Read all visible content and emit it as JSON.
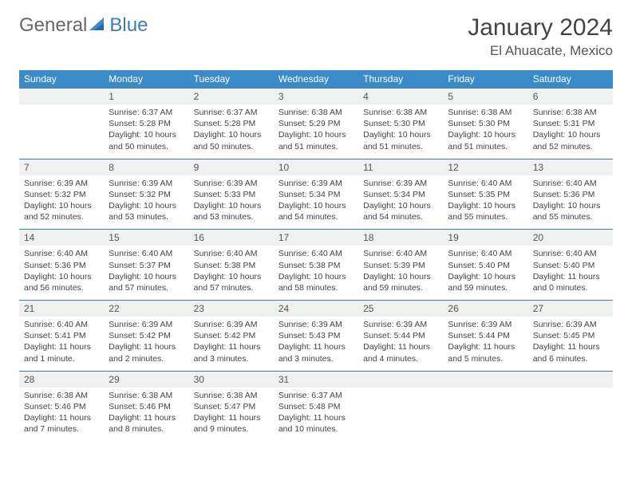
{
  "brand": {
    "name_part1": "General",
    "name_part2": "Blue",
    "icon_color": "#3b8bc9"
  },
  "header": {
    "month_title": "January 2024",
    "location": "El Ahuacate, Mexico"
  },
  "calendar": {
    "day_headers": [
      "Sunday",
      "Monday",
      "Tuesday",
      "Wednesday",
      "Thursday",
      "Friday",
      "Saturday"
    ],
    "header_bg": "#3b8bc9",
    "header_text_color": "#ffffff",
    "daynum_bg": "#eff0f0",
    "border_color": "#3b7bbf",
    "text_color": "#444444",
    "leading_blanks": 1,
    "days": [
      {
        "n": 1,
        "sunrise": "6:37 AM",
        "sunset": "5:28 PM",
        "daylight": "10 hours and 50 minutes."
      },
      {
        "n": 2,
        "sunrise": "6:37 AM",
        "sunset": "5:28 PM",
        "daylight": "10 hours and 50 minutes."
      },
      {
        "n": 3,
        "sunrise": "6:38 AM",
        "sunset": "5:29 PM",
        "daylight": "10 hours and 51 minutes."
      },
      {
        "n": 4,
        "sunrise": "6:38 AM",
        "sunset": "5:30 PM",
        "daylight": "10 hours and 51 minutes."
      },
      {
        "n": 5,
        "sunrise": "6:38 AM",
        "sunset": "5:30 PM",
        "daylight": "10 hours and 51 minutes."
      },
      {
        "n": 6,
        "sunrise": "6:38 AM",
        "sunset": "5:31 PM",
        "daylight": "10 hours and 52 minutes."
      },
      {
        "n": 7,
        "sunrise": "6:39 AM",
        "sunset": "5:32 PM",
        "daylight": "10 hours and 52 minutes."
      },
      {
        "n": 8,
        "sunrise": "6:39 AM",
        "sunset": "5:32 PM",
        "daylight": "10 hours and 53 minutes."
      },
      {
        "n": 9,
        "sunrise": "6:39 AM",
        "sunset": "5:33 PM",
        "daylight": "10 hours and 53 minutes."
      },
      {
        "n": 10,
        "sunrise": "6:39 AM",
        "sunset": "5:34 PM",
        "daylight": "10 hours and 54 minutes."
      },
      {
        "n": 11,
        "sunrise": "6:39 AM",
        "sunset": "5:34 PM",
        "daylight": "10 hours and 54 minutes."
      },
      {
        "n": 12,
        "sunrise": "6:40 AM",
        "sunset": "5:35 PM",
        "daylight": "10 hours and 55 minutes."
      },
      {
        "n": 13,
        "sunrise": "6:40 AM",
        "sunset": "5:36 PM",
        "daylight": "10 hours and 55 minutes."
      },
      {
        "n": 14,
        "sunrise": "6:40 AM",
        "sunset": "5:36 PM",
        "daylight": "10 hours and 56 minutes."
      },
      {
        "n": 15,
        "sunrise": "6:40 AM",
        "sunset": "5:37 PM",
        "daylight": "10 hours and 57 minutes."
      },
      {
        "n": 16,
        "sunrise": "6:40 AM",
        "sunset": "5:38 PM",
        "daylight": "10 hours and 57 minutes."
      },
      {
        "n": 17,
        "sunrise": "6:40 AM",
        "sunset": "5:38 PM",
        "daylight": "10 hours and 58 minutes."
      },
      {
        "n": 18,
        "sunrise": "6:40 AM",
        "sunset": "5:39 PM",
        "daylight": "10 hours and 59 minutes."
      },
      {
        "n": 19,
        "sunrise": "6:40 AM",
        "sunset": "5:40 PM",
        "daylight": "10 hours and 59 minutes."
      },
      {
        "n": 20,
        "sunrise": "6:40 AM",
        "sunset": "5:40 PM",
        "daylight": "11 hours and 0 minutes."
      },
      {
        "n": 21,
        "sunrise": "6:40 AM",
        "sunset": "5:41 PM",
        "daylight": "11 hours and 1 minute."
      },
      {
        "n": 22,
        "sunrise": "6:39 AM",
        "sunset": "5:42 PM",
        "daylight": "11 hours and 2 minutes."
      },
      {
        "n": 23,
        "sunrise": "6:39 AM",
        "sunset": "5:42 PM",
        "daylight": "11 hours and 3 minutes."
      },
      {
        "n": 24,
        "sunrise": "6:39 AM",
        "sunset": "5:43 PM",
        "daylight": "11 hours and 3 minutes."
      },
      {
        "n": 25,
        "sunrise": "6:39 AM",
        "sunset": "5:44 PM",
        "daylight": "11 hours and 4 minutes."
      },
      {
        "n": 26,
        "sunrise": "6:39 AM",
        "sunset": "5:44 PM",
        "daylight": "11 hours and 5 minutes."
      },
      {
        "n": 27,
        "sunrise": "6:39 AM",
        "sunset": "5:45 PM",
        "daylight": "11 hours and 6 minutes."
      },
      {
        "n": 28,
        "sunrise": "6:38 AM",
        "sunset": "5:46 PM",
        "daylight": "11 hours and 7 minutes."
      },
      {
        "n": 29,
        "sunrise": "6:38 AM",
        "sunset": "5:46 PM",
        "daylight": "11 hours and 8 minutes."
      },
      {
        "n": 30,
        "sunrise": "6:38 AM",
        "sunset": "5:47 PM",
        "daylight": "11 hours and 9 minutes."
      },
      {
        "n": 31,
        "sunrise": "6:37 AM",
        "sunset": "5:48 PM",
        "daylight": "11 hours and 10 minutes."
      }
    ],
    "labels": {
      "sunrise": "Sunrise:",
      "sunset": "Sunset:",
      "daylight": "Daylight:"
    }
  }
}
